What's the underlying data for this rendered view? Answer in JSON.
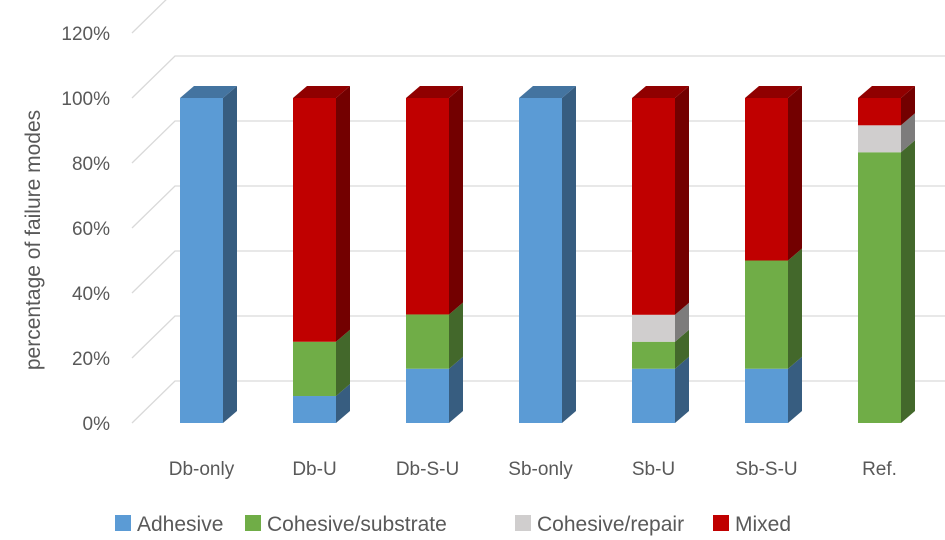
{
  "chart_data": {
    "type": "bar",
    "stacked": true,
    "three_d": true,
    "title": "",
    "xlabel": "",
    "ylabel": "percentage of failure modes",
    "ylim": [
      0,
      120
    ],
    "yticks": [
      "0%",
      "20%",
      "40%",
      "60%",
      "80%",
      "100%",
      "120%"
    ],
    "ytick_values": [
      0,
      20,
      40,
      60,
      80,
      100,
      120
    ],
    "grid": true,
    "legend_position": "bottom",
    "categories": [
      "Db-only",
      "Db-U",
      "Db-S-U",
      "Sb-only",
      "Sb-U",
      "Sb-S-U",
      "Ref."
    ],
    "series": [
      {
        "name": "Adhesive",
        "color": "#5B9BD5",
        "values": [
          100,
          8.3,
          16.7,
          100,
          16.7,
          16.7,
          0
        ]
      },
      {
        "name": "Cohesive/substrate",
        "color": "#70AD47",
        "values": [
          0,
          16.7,
          16.7,
          0,
          8.3,
          33.3,
          83.3
        ]
      },
      {
        "name": "Cohesive/repair",
        "color": "#D0CECE",
        "values": [
          0,
          0,
          0,
          0,
          8.3,
          0,
          8.3
        ]
      },
      {
        "name": "Mixed",
        "color": "#C00000",
        "values": [
          0,
          75,
          66.6,
          0,
          66.7,
          50,
          8.4
        ]
      }
    ]
  }
}
